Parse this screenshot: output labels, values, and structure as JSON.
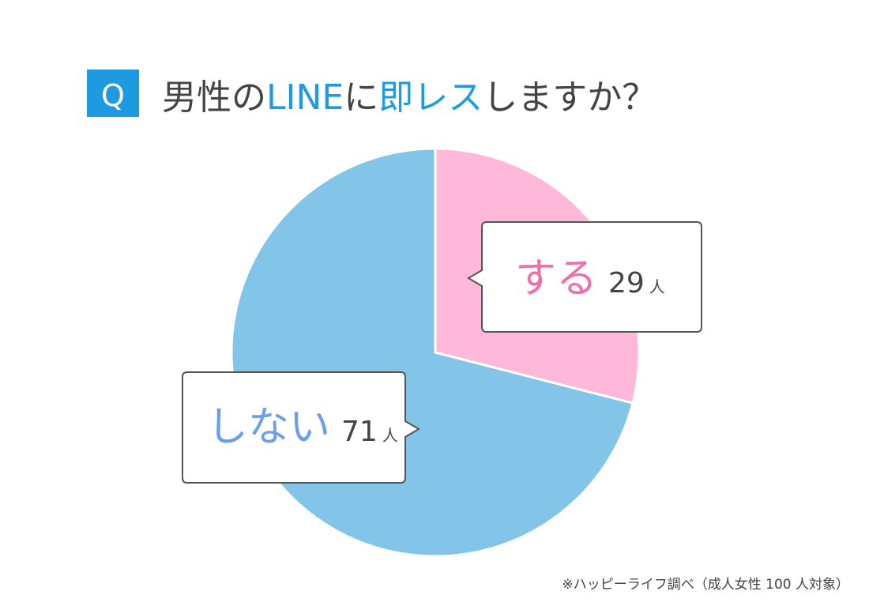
{
  "chart_data": {
    "type": "pie",
    "question_label": "Q",
    "title_parts": [
      "男性の",
      "LINE",
      "に",
      "即レス",
      "しますか？"
    ],
    "title_colors": [
      "#444444",
      "#1E9BE0",
      "#444444",
      "#1E9BE0",
      "#444444"
    ],
    "categories": [
      "する",
      "しない"
    ],
    "values": [
      29,
      71
    ],
    "colors": [
      "#FFB8D9",
      "#82C5E8"
    ],
    "label_colors": [
      "#F06FAA",
      "#6A9FEA"
    ],
    "unit": "人",
    "footnote": "※ハッピーライフ調べ（成人女性 100 人対象）"
  }
}
